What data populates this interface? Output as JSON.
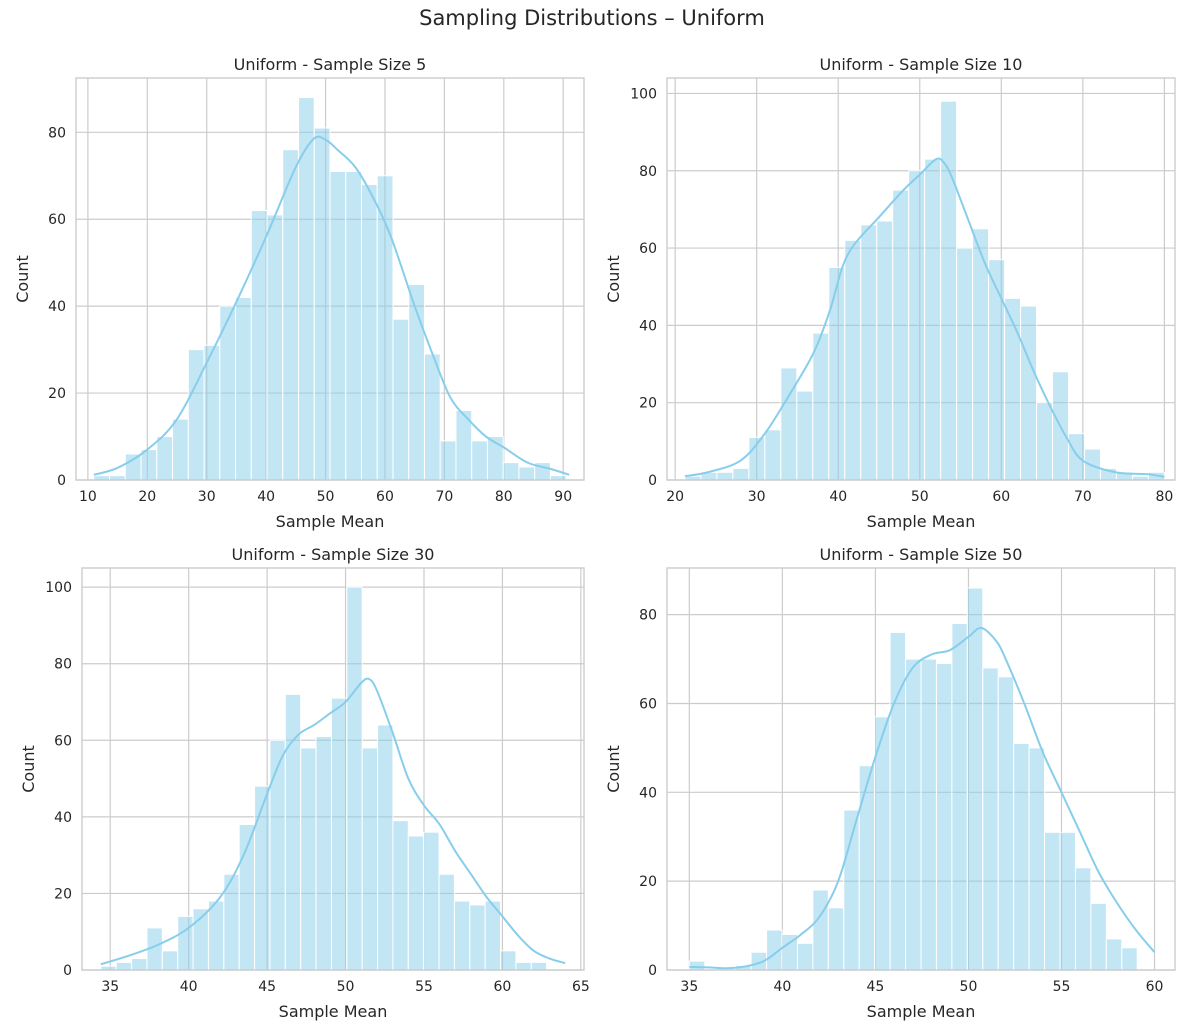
{
  "figure": {
    "title": "Sampling Distributions – Uniform",
    "color": "#87CEEB"
  },
  "chart_data": [
    {
      "type": "bar",
      "title": "Uniform - Sample Size 5",
      "xlabel": "Sample Mean",
      "ylabel": "Count",
      "xlim": [
        8,
        93.5
      ],
      "ylim": [
        0,
        92.5
      ],
      "xticks": [
        10,
        20,
        30,
        40,
        50,
        60,
        70,
        80,
        90
      ],
      "yticks": [
        0,
        20,
        40,
        60,
        80
      ],
      "bin_start": 11,
      "bin_width": 2.65,
      "values": [
        1,
        1,
        6,
        7,
        10,
        14,
        30,
        31,
        40,
        42,
        62,
        61,
        76,
        88,
        81,
        71,
        71,
        68,
        70,
        37,
        45,
        29,
        9,
        16,
        9,
        10,
        4,
        3,
        4,
        1
      ],
      "kde": [
        [
          11,
          1.2
        ],
        [
          15,
          2.8
        ],
        [
          20,
          7
        ],
        [
          25,
          14
        ],
        [
          30,
          27
        ],
        [
          35,
          41
        ],
        [
          40,
          56
        ],
        [
          45,
          72
        ],
        [
          48,
          78.5
        ],
        [
          50,
          78.3
        ],
        [
          52,
          76
        ],
        [
          55,
          72
        ],
        [
          58,
          65
        ],
        [
          61,
          56
        ],
        [
          65,
          40
        ],
        [
          68,
          29
        ],
        [
          71,
          19
        ],
        [
          74,
          14
        ],
        [
          77,
          10
        ],
        [
          80,
          7.5
        ],
        [
          84,
          4
        ],
        [
          88,
          2.5
        ],
        [
          91,
          1.2
        ]
      ],
      "grid": true,
      "legend": "none"
    },
    {
      "type": "bar",
      "title": "Uniform - Sample Size 10",
      "xlabel": "Sample Mean",
      "ylabel": "Count",
      "xlim": [
        19,
        81.3
      ],
      "ylim": [
        0,
        104
      ],
      "xticks": [
        20,
        30,
        40,
        50,
        60,
        70,
        80
      ],
      "yticks": [
        0,
        20,
        40,
        60,
        80,
        100
      ],
      "bin_start": 21.2,
      "bin_width": 1.96,
      "values": [
        1,
        2,
        2,
        3,
        11,
        13,
        29,
        23,
        38,
        55,
        62,
        66,
        67,
        75,
        80,
        83,
        98,
        60,
        65,
        57,
        47,
        45,
        20,
        28,
        12,
        8,
        3,
        2,
        1,
        2
      ],
      "kde": [
        [
          21.2,
          1
        ],
        [
          24,
          2
        ],
        [
          28,
          5
        ],
        [
          31,
          12
        ],
        [
          34,
          22
        ],
        [
          37,
          33
        ],
        [
          39,
          44
        ],
        [
          40.5,
          55
        ],
        [
          42,
          61
        ],
        [
          45,
          68
        ],
        [
          48,
          75
        ],
        [
          50,
          79
        ],
        [
          52,
          83
        ],
        [
          53,
          82
        ],
        [
          54,
          78
        ],
        [
          56,
          67
        ],
        [
          58,
          56
        ],
        [
          60,
          47
        ],
        [
          62,
          38
        ],
        [
          64,
          28
        ],
        [
          66,
          19
        ],
        [
          68,
          11
        ],
        [
          70,
          5
        ],
        [
          74,
          2
        ],
        [
          78,
          1.5
        ],
        [
          80,
          0.8
        ]
      ],
      "grid": true,
      "legend": "none"
    },
    {
      "type": "bar",
      "title": "Uniform - Sample Size 30",
      "xlabel": "Sample Mean",
      "ylabel": "Count",
      "xlim": [
        33.2,
        65.2
      ],
      "ylim": [
        0,
        105
      ],
      "xticks": [
        35,
        40,
        45,
        50,
        55,
        60,
        65
      ],
      "yticks": [
        0,
        20,
        40,
        60,
        80,
        100
      ],
      "bin_start": 34.4,
      "bin_width": 0.98,
      "values": [
        1,
        2,
        3,
        11,
        5,
        14,
        16,
        18,
        25,
        38,
        48,
        60,
        72,
        58,
        61,
        71,
        100,
        58,
        64,
        39,
        35,
        36,
        25,
        18,
        17,
        18,
        5,
        2,
        2
      ],
      "kde": [
        [
          34.4,
          1.5
        ],
        [
          36,
          3.5
        ],
        [
          38,
          6.5
        ],
        [
          40,
          11
        ],
        [
          42,
          19
        ],
        [
          43.5,
          30
        ],
        [
          45,
          46
        ],
        [
          46,
          56
        ],
        [
          47,
          61.5
        ],
        [
          48,
          64
        ],
        [
          49,
          67
        ],
        [
          50,
          70
        ],
        [
          51,
          75
        ],
        [
          51.5,
          76
        ],
        [
          52,
          73
        ],
        [
          53,
          62
        ],
        [
          54,
          50
        ],
        [
          55,
          43
        ],
        [
          56,
          38
        ],
        [
          57,
          31
        ],
        [
          58,
          25
        ],
        [
          59,
          19
        ],
        [
          60,
          14
        ],
        [
          61,
          9
        ],
        [
          62,
          5
        ],
        [
          63,
          3
        ],
        [
          64,
          1.8
        ]
      ],
      "grid": true,
      "legend": "none"
    },
    {
      "type": "bar",
      "title": "Uniform - Sample Size 50",
      "xlabel": "Sample Mean",
      "ylabel": "Count",
      "xlim": [
        33.8,
        61.1
      ],
      "ylim": [
        0,
        90.5
      ],
      "xticks": [
        35,
        40,
        45,
        50,
        55,
        60
      ],
      "yticks": [
        0,
        20,
        40,
        60,
        80
      ],
      "bin_start": 35,
      "bin_width": 0.83,
      "values": [
        2,
        0,
        0,
        1,
        4,
        9,
        8,
        6,
        18,
        14,
        36,
        46,
        57,
        76,
        70,
        70,
        69,
        78,
        86,
        68,
        66,
        51,
        50,
        31,
        31,
        23,
        15,
        7,
        5
      ],
      "kde": [
        [
          35,
          0.7
        ],
        [
          36,
          0.6
        ],
        [
          37,
          0.4
        ],
        [
          38,
          0.8
        ],
        [
          39,
          2
        ],
        [
          40,
          5
        ],
        [
          41,
          8
        ],
        [
          42,
          12
        ],
        [
          43,
          20
        ],
        [
          44,
          34
        ],
        [
          45,
          48
        ],
        [
          46,
          60
        ],
        [
          47,
          68
        ],
        [
          48,
          71
        ],
        [
          49,
          72
        ],
        [
          50,
          75
        ],
        [
          50.7,
          77
        ],
        [
          51.5,
          74
        ],
        [
          52,
          70
        ],
        [
          53,
          60
        ],
        [
          54,
          49
        ],
        [
          55,
          40
        ],
        [
          56,
          31
        ],
        [
          57,
          22
        ],
        [
          58,
          15
        ],
        [
          59,
          9
        ],
        [
          60,
          4
        ]
      ],
      "grid": true,
      "legend": "none"
    }
  ]
}
